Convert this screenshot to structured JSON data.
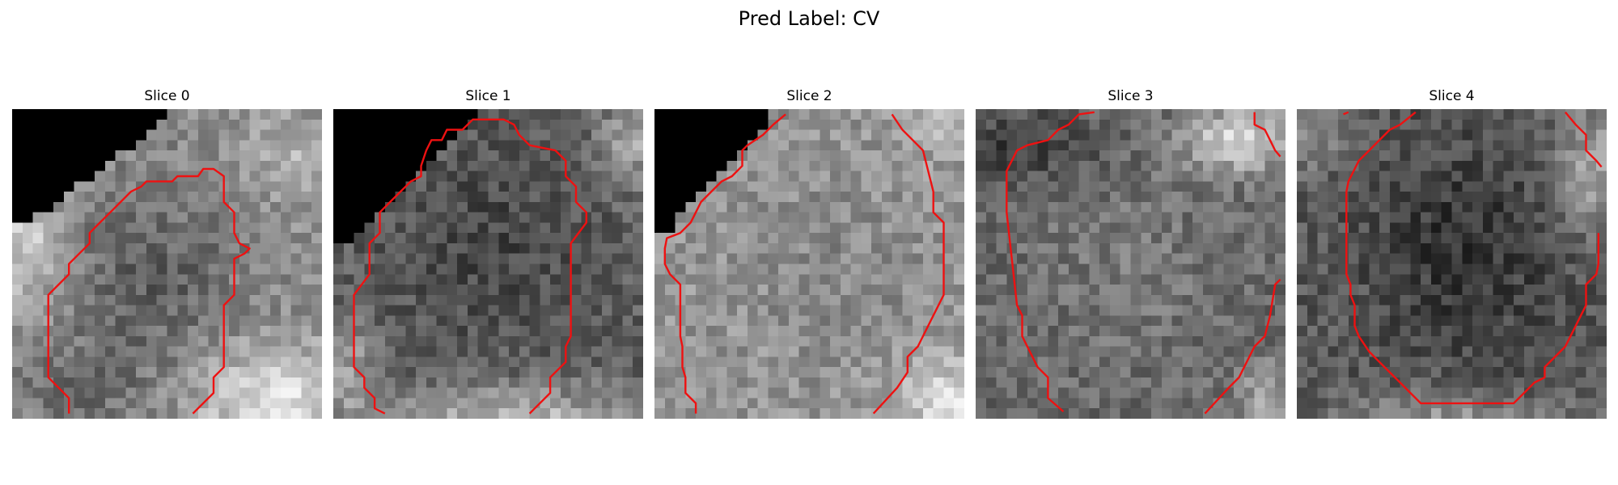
{
  "figure": {
    "title": "Pred Label: CV"
  },
  "panels": [
    {
      "title": "Slice 0",
      "mask": "ul-black-steep",
      "tone": "gray-left-bright-bottom",
      "contour_color": "#ee1111"
    },
    {
      "title": "Slice 1",
      "mask": "ul-black-large",
      "tone": "dark-center-bright-bottom",
      "contour_color": "#ee1111"
    },
    {
      "title": "Slice 2",
      "mask": "ul-black-wide",
      "tone": "mid-gray-uniform",
      "contour_color": "#ee1111"
    },
    {
      "title": "Slice 3",
      "mask": "none",
      "tone": "dark-top-bright-topright",
      "contour_color": "#ee1111"
    },
    {
      "title": "Slice 4",
      "mask": "none",
      "tone": "dark-center-bright-edges",
      "contour_color": "#ee1111"
    }
  ]
}
